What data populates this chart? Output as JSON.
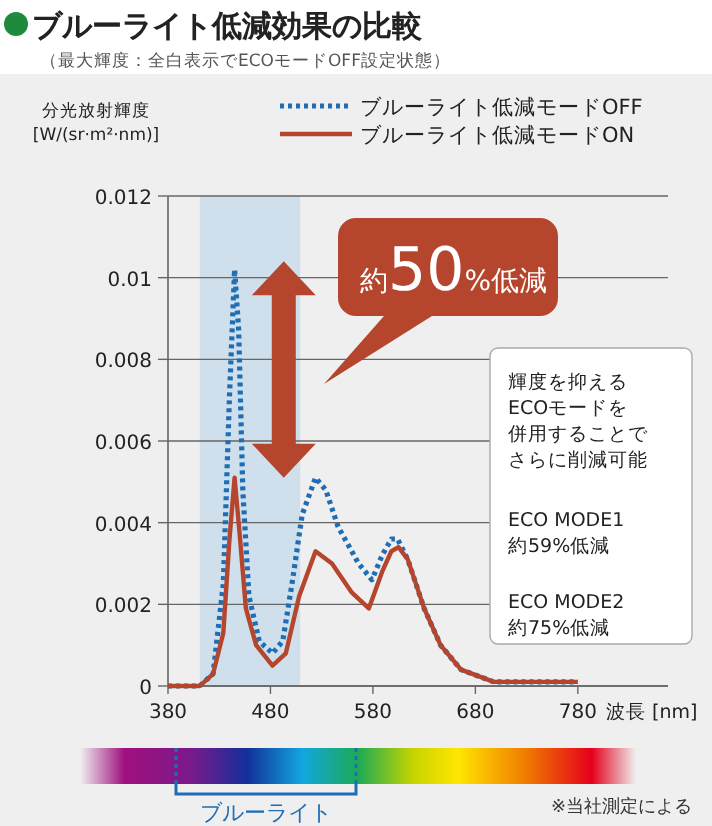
{
  "chart_data": {
    "type": "line",
    "title": "ブルーライト低減効果の比較",
    "subtitle": "（最大輝度：全白表示でECOモードOFF設定状態）",
    "ylabel": "分光放射輝度\n[W/(sr·m²·nm)]",
    "xlabel": "波長 [nm]",
    "xlim": [
      380,
      868
    ],
    "xticks": [
      380,
      480,
      580,
      680,
      780
    ],
    "ylim": [
      0,
      0.012
    ],
    "yticks": [
      0,
      0.002,
      0.004,
      0.006,
      0.008,
      0.01,
      0.012
    ],
    "grid": "y",
    "legend": "top right",
    "bands": [
      {
        "axis": "x",
        "from": 411,
        "to": 509,
        "color": "#cfe0ec"
      }
    ],
    "series": [
      {
        "name": "ブルーライト低減モードOFF",
        "color": "#1f6db5",
        "line_style": "dotted",
        "x": [
          380,
          411,
          424,
          434,
          440,
          445,
          449,
          453,
          459,
          469,
          482,
          492,
          501,
          511,
          524,
          534,
          546,
          566,
          579,
          589,
          598,
          604,
          614,
          630,
          646,
          666,
          698,
          780
        ],
        "values": [
          0,
          0,
          0.0003,
          0.0025,
          0.0071,
          0.0102,
          0.0087,
          0.0048,
          0.0022,
          0.0011,
          0.0008,
          0.0011,
          0.0025,
          0.0042,
          0.0051,
          0.0048,
          0.0039,
          0.003,
          0.0026,
          0.0032,
          0.0036,
          0.0036,
          0.0031,
          0.0019,
          0.001,
          0.0004,
          0.0001,
          0.0001
        ]
      },
      {
        "name": "ブルーライト低減モードON",
        "color": "#b5452c",
        "line_style": "solid",
        "x": [
          380,
          411,
          424,
          434,
          440,
          445,
          450,
          456,
          466,
          482,
          495,
          508,
          524,
          540,
          559,
          576,
          589,
          598,
          605,
          614,
          630,
          646,
          666,
          698,
          780
        ],
        "values": [
          0,
          0,
          0.0003,
          0.0013,
          0.0036,
          0.0051,
          0.0037,
          0.0019,
          0.001,
          0.0005,
          0.0008,
          0.0022,
          0.0033,
          0.003,
          0.0023,
          0.0019,
          0.0028,
          0.0033,
          0.0034,
          0.0031,
          0.0019,
          0.001,
          0.0004,
          0.0001,
          0.0001
        ]
      }
    ],
    "annotations": [
      "約**50**%低減",
      "輝度を抑える",
      "ECOモードを",
      "併用することで",
      "さらに削減可能",
      "ECO MODE1",
      "約59%低減",
      "ECO MODE2",
      "約75%低減",
      "ブルーライト",
      "※当社測定による"
    ]
  }
}
